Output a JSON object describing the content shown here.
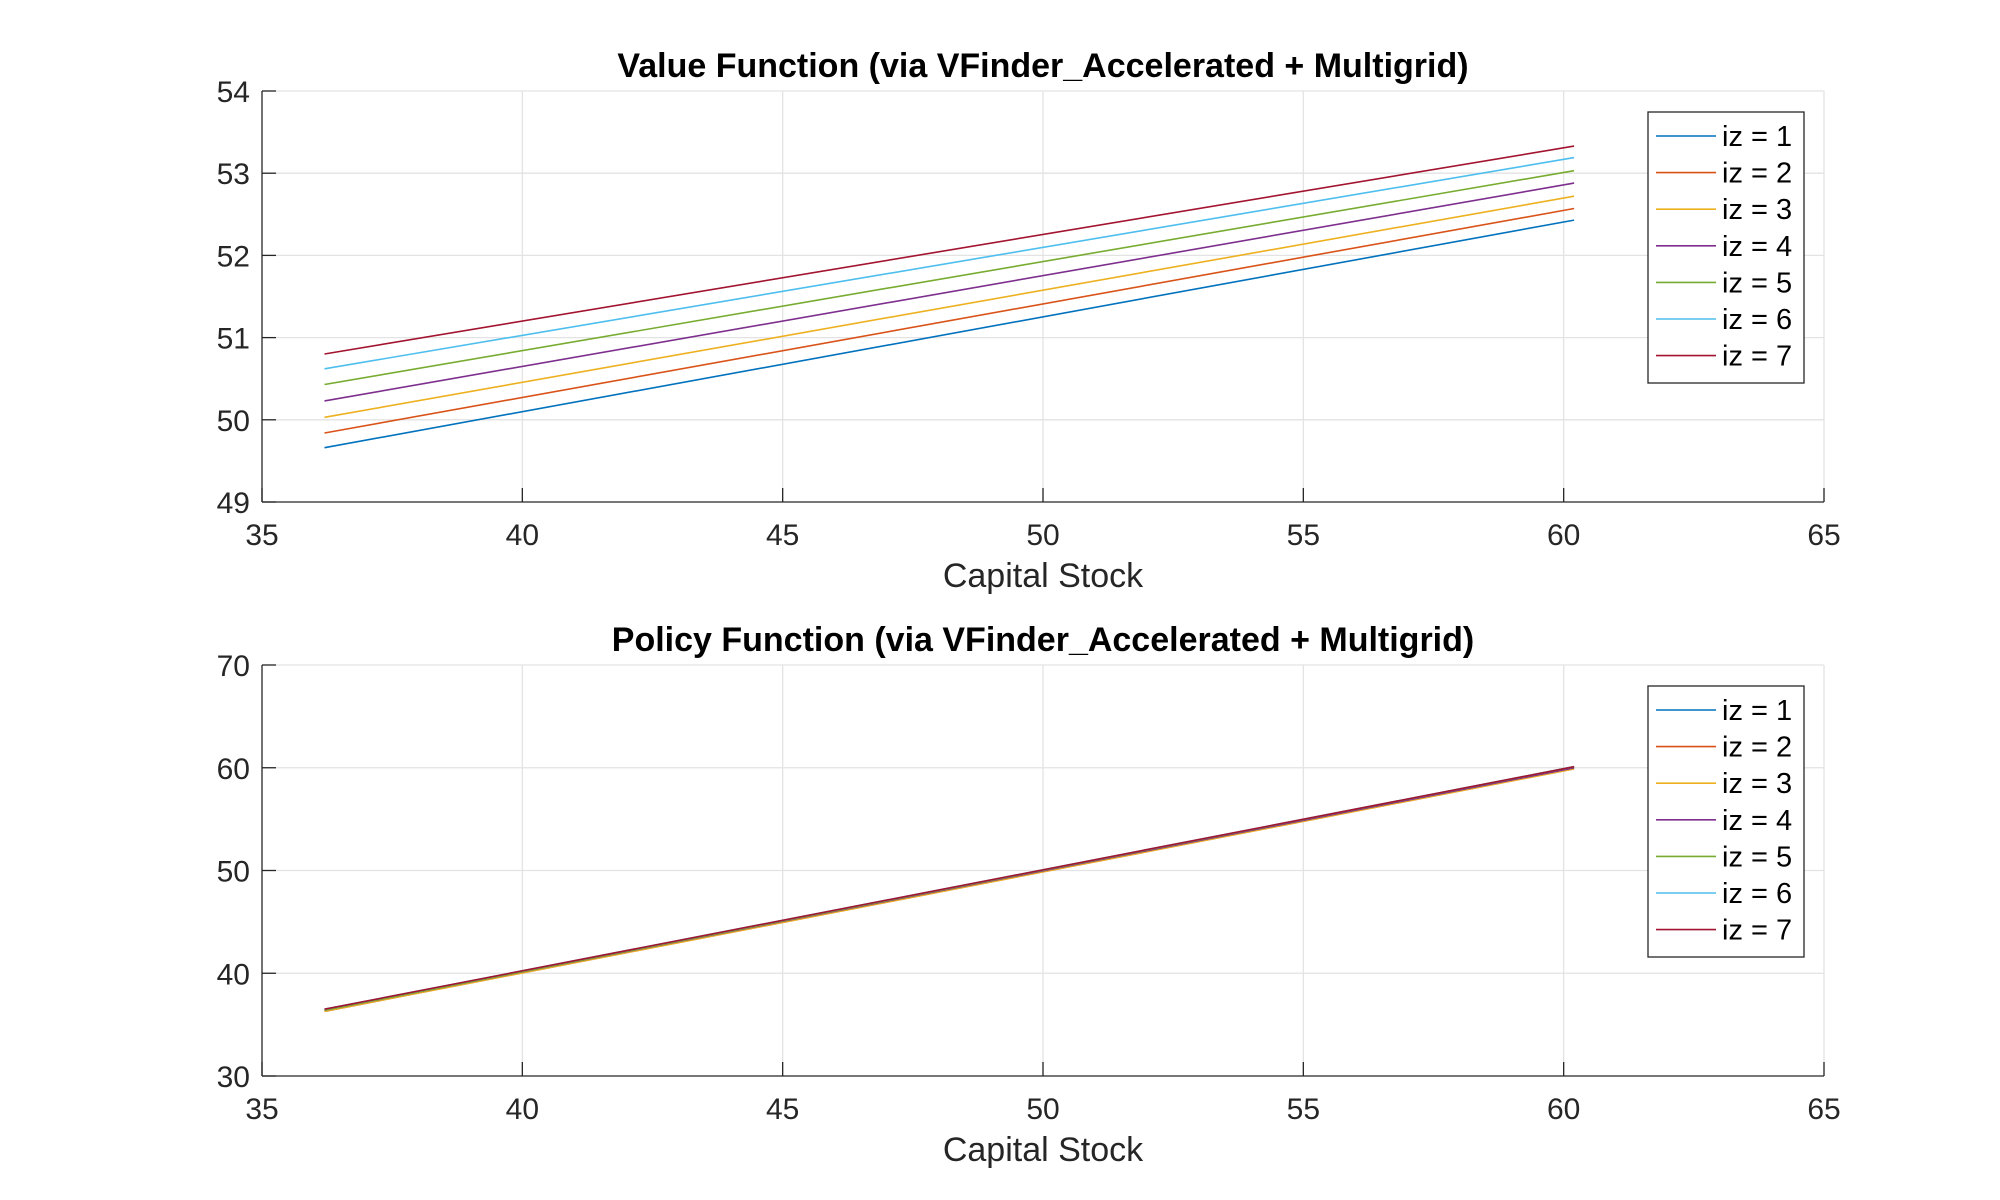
{
  "chart_data": [
    {
      "type": "line",
      "title": "Value Function (via VFinder_Accelerated + Multigrid)",
      "xlabel": "Capital Stock",
      "ylabel": "",
      "xlim": [
        35,
        65
      ],
      "ylim": [
        49,
        54
      ],
      "xticks": [
        35,
        40,
        45,
        50,
        55,
        60,
        65
      ],
      "yticks": [
        49,
        50,
        51,
        52,
        53,
        54
      ],
      "grid": true,
      "legend_position": "top-right",
      "x": [
        36.2,
        60.2
      ],
      "series": [
        {
          "name": "iz = 1",
          "color": "#0072BD",
          "values": [
            49.66,
            52.43
          ]
        },
        {
          "name": "iz = 2",
          "color": "#D95319",
          "values": [
            49.84,
            52.57
          ]
        },
        {
          "name": "iz = 3",
          "color": "#EDB120",
          "values": [
            50.03,
            52.72
          ]
        },
        {
          "name": "iz = 4",
          "color": "#7E2F8E",
          "values": [
            50.23,
            52.88
          ]
        },
        {
          "name": "iz = 5",
          "color": "#77AC30",
          "values": [
            50.43,
            53.03
          ]
        },
        {
          "name": "iz = 6",
          "color": "#4DBEEE",
          "values": [
            50.62,
            53.19
          ]
        },
        {
          "name": "iz = 7",
          "color": "#A2142F",
          "values": [
            50.8,
            53.33
          ]
        }
      ]
    },
    {
      "type": "line",
      "title": "Policy Function (via VFinder_Accelerated + Multigrid)",
      "xlabel": "Capital Stock",
      "ylabel": "",
      "xlim": [
        35,
        65
      ],
      "ylim": [
        30,
        70
      ],
      "xticks": [
        35,
        40,
        45,
        50,
        55,
        60,
        65
      ],
      "yticks": [
        30,
        40,
        50,
        60,
        70
      ],
      "grid": true,
      "legend_position": "top-right",
      "x": [
        36.2,
        60.2
      ],
      "series": [
        {
          "name": "iz = 1",
          "color": "#0072BD",
          "values": [
            36.3,
            60.1
          ]
        },
        {
          "name": "iz = 2",
          "color": "#D95319",
          "values": [
            36.3,
            59.9
          ]
        },
        {
          "name": "iz = 3",
          "color": "#EDB120",
          "values": [
            36.3,
            59.9
          ]
        },
        {
          "name": "iz = 4",
          "color": "#7E2F8E",
          "values": [
            36.4,
            60.0
          ]
        },
        {
          "name": "iz = 5",
          "color": "#77AC30",
          "values": [
            36.4,
            60.1
          ]
        },
        {
          "name": "iz = 6",
          "color": "#4DBEEE",
          "values": [
            36.5,
            60.1
          ]
        },
        {
          "name": "iz = 7",
          "color": "#A2142F",
          "values": [
            36.5,
            60.1
          ]
        }
      ]
    }
  ]
}
